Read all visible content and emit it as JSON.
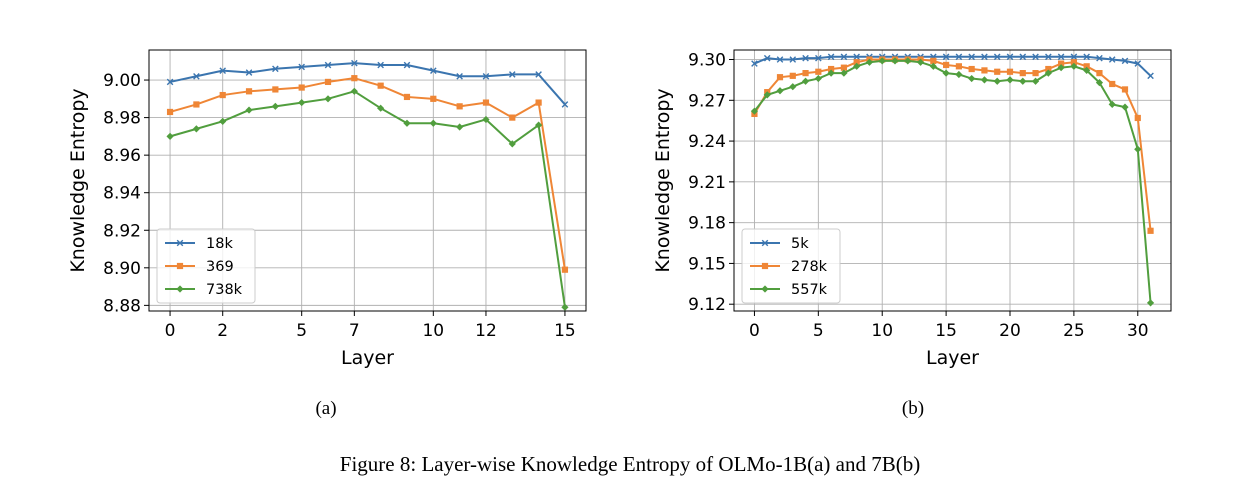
{
  "caption": "Figure 8: Layer-wise Knowledge Entropy of OLMo-1B(a) and 7B(b)",
  "colors": {
    "blue": "#3b75af",
    "orange": "#ef8636",
    "green": "#519e3e"
  },
  "chart_data": [
    {
      "type": "line",
      "sublabel": "(a)",
      "xlabel": "Layer",
      "ylabel": "Knowledge Entropy",
      "xlim": [
        -0.8,
        15.8
      ],
      "ylim": [
        8.877,
        9.016
      ],
      "xticks": [
        0,
        2,
        5,
        7,
        10,
        12,
        15
      ],
      "xtick_labels": [
        "0",
        "2",
        "5",
        "7",
        "10",
        "12",
        "15"
      ],
      "yticks": [
        8.88,
        8.9,
        8.92,
        8.94,
        8.96,
        8.98,
        9.0
      ],
      "ytick_labels": [
        "8.88",
        "8.90",
        "8.92",
        "8.94",
        "8.96",
        "8.98",
        "9.00"
      ],
      "grid": true,
      "legend": "lower-left",
      "x": [
        0,
        1,
        2,
        3,
        4,
        5,
        6,
        7,
        8,
        9,
        10,
        11,
        12,
        13,
        14,
        15
      ],
      "series": [
        {
          "name": "18k",
          "color": "#3b75af",
          "marker": "x",
          "values": [
            8.999,
            9.002,
            9.005,
            9.004,
            9.006,
            9.007,
            9.008,
            9.009,
            9.008,
            9.008,
            9.005,
            9.002,
            9.002,
            9.003,
            9.003,
            8.987
          ]
        },
        {
          "name": "369",
          "color": "#ef8636",
          "marker": "s",
          "values": [
            8.983,
            8.987,
            8.992,
            8.994,
            8.995,
            8.996,
            8.999,
            9.001,
            8.997,
            8.991,
            8.99,
            8.986,
            8.988,
            8.98,
            8.988,
            8.899
          ]
        },
        {
          "name": "738k",
          "color": "#519e3e",
          "marker": "D",
          "values": [
            8.97,
            8.974,
            8.978,
            8.984,
            8.986,
            8.988,
            8.99,
            8.994,
            8.985,
            8.977,
            8.977,
            8.975,
            8.979,
            8.966,
            8.976,
            8.879
          ]
        }
      ]
    },
    {
      "type": "line",
      "sublabel": "(b)",
      "xlabel": "Layer",
      "ylabel": "Knowledge Entropy",
      "xlim": [
        -1.6,
        32.6
      ],
      "ylim": [
        9.115,
        9.307
      ],
      "xticks": [
        0,
        5,
        10,
        15,
        20,
        25,
        30
      ],
      "xtick_labels": [
        "0",
        "5",
        "10",
        "15",
        "20",
        "25",
        "30"
      ],
      "yticks": [
        9.12,
        9.15,
        9.18,
        9.21,
        9.24,
        9.27,
        9.3
      ],
      "ytick_labels": [
        "9.12",
        "9.15",
        "9.18",
        "9.21",
        "9.24",
        "9.27",
        "9.30"
      ],
      "grid": true,
      "legend": "lower-left",
      "x": [
        0,
        1,
        2,
        3,
        4,
        5,
        6,
        7,
        8,
        9,
        10,
        11,
        12,
        13,
        14,
        15,
        16,
        17,
        18,
        19,
        20,
        21,
        22,
        23,
        24,
        25,
        26,
        27,
        28,
        29,
        30,
        31
      ],
      "series": [
        {
          "name": "5k",
          "color": "#3b75af",
          "marker": "x",
          "values": [
            9.297,
            9.301,
            9.3,
            9.3,
            9.301,
            9.301,
            9.302,
            9.302,
            9.302,
            9.302,
            9.302,
            9.302,
            9.302,
            9.302,
            9.302,
            9.302,
            9.302,
            9.302,
            9.302,
            9.302,
            9.302,
            9.302,
            9.302,
            9.302,
            9.302,
            9.302,
            9.302,
            9.301,
            9.3,
            9.299,
            9.297,
            9.288
          ]
        },
        {
          "name": "278k",
          "color": "#ef8636",
          "marker": "s",
          "values": [
            9.26,
            9.276,
            9.287,
            9.288,
            9.29,
            9.291,
            9.293,
            9.294,
            9.298,
            9.3,
            9.3,
            9.3,
            9.3,
            9.3,
            9.299,
            9.296,
            9.295,
            9.293,
            9.292,
            9.291,
            9.291,
            9.29,
            9.29,
            9.293,
            9.297,
            9.298,
            9.295,
            9.29,
            9.282,
            9.278,
            9.257,
            9.174
          ]
        },
        {
          "name": "557k",
          "color": "#519e3e",
          "marker": "D",
          "values": [
            9.262,
            9.274,
            9.277,
            9.28,
            9.284,
            9.286,
            9.29,
            9.29,
            9.295,
            9.298,
            9.299,
            9.299,
            9.299,
            9.298,
            9.295,
            9.29,
            9.289,
            9.286,
            9.285,
            9.284,
            9.285,
            9.284,
            9.284,
            9.29,
            9.294,
            9.295,
            9.292,
            9.283,
            9.267,
            9.265,
            9.234,
            9.121
          ]
        }
      ]
    }
  ]
}
